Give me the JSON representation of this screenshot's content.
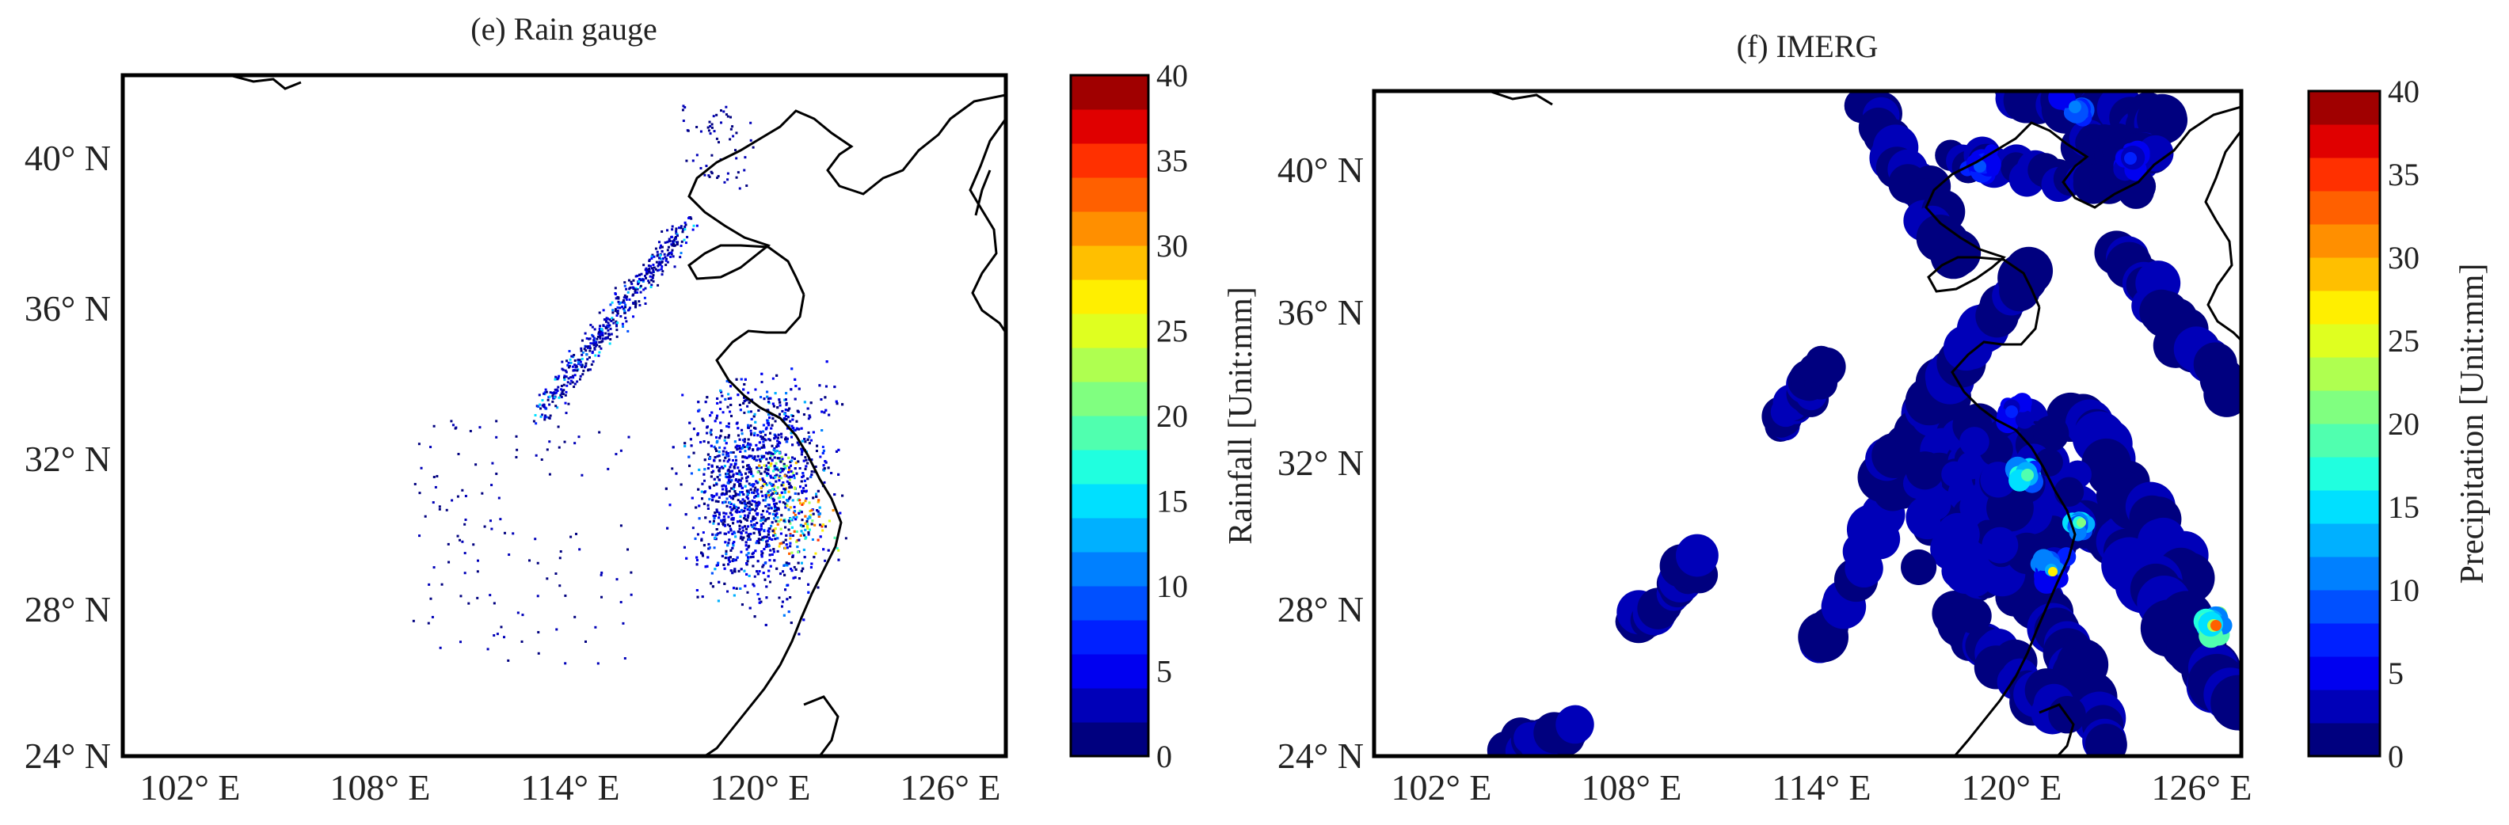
{
  "figure": {
    "panels": [
      {
        "id": "e",
        "title": "(e) Rain gauge",
        "colorbar_label": "Rainfall [Unit:mm]"
      },
      {
        "id": "f",
        "title": "(f) IMERG",
        "colorbar_label": "Precipitation [Unit:mm]"
      }
    ]
  },
  "chart_data": [
    {
      "type": "heatmap",
      "title": "(e) Rain gauge",
      "x_ticks": [
        "102° E",
        "108° E",
        "114° E",
        "120° E",
        "126° E"
      ],
      "x_tick_values": [
        102,
        108,
        114,
        120,
        126
      ],
      "y_ticks": [
        "24° N",
        "28° N",
        "32° N",
        "36° N",
        "40° N"
      ],
      "y_tick_values": [
        24,
        28,
        32,
        36,
        40
      ],
      "xlim": [
        99,
        127
      ],
      "ylim": [
        24,
        42
      ],
      "colorbar": {
        "label": "Rainfall [Unit:mm]",
        "range": [
          0,
          40
        ],
        "ticks": [
          "0",
          "5",
          "10",
          "15",
          "20",
          "25",
          "30",
          "35",
          "40"
        ],
        "levels": 20
      }
    },
    {
      "type": "heatmap",
      "title": "(f) IMERG",
      "x_ticks": [
        "102° E",
        "108° E",
        "114° E",
        "120° E",
        "126° E"
      ],
      "x_tick_values": [
        102,
        108,
        114,
        120,
        126
      ],
      "y_ticks": [
        "24° N",
        "28° N",
        "32° N",
        "36° N",
        "40° N"
      ],
      "y_tick_values": [
        24,
        28,
        32,
        36,
        40
      ],
      "xlim": [
        99,
        127
      ],
      "ylim": [
        24,
        42
      ],
      "colorbar": {
        "label": "Precipitation [Unit:mm]",
        "range": [
          0,
          40
        ],
        "ticks": [
          "0",
          "5",
          "10",
          "15",
          "20",
          "25",
          "30",
          "35",
          "40"
        ],
        "levels": 20
      }
    }
  ],
  "colors": {
    "colormap": [
      "#00007f",
      "#0000b8",
      "#0000f0",
      "#0020ff",
      "#0050ff",
      "#0080ff",
      "#00b0ff",
      "#00e0ff",
      "#20ffdf",
      "#50ffaf",
      "#80ff80",
      "#afff50",
      "#dfff20",
      "#ffef00",
      "#ffbf00",
      "#ff8f00",
      "#ff6000",
      "#ff3000",
      "#e00000",
      "#a00000"
    ],
    "coastline": "#000000"
  }
}
